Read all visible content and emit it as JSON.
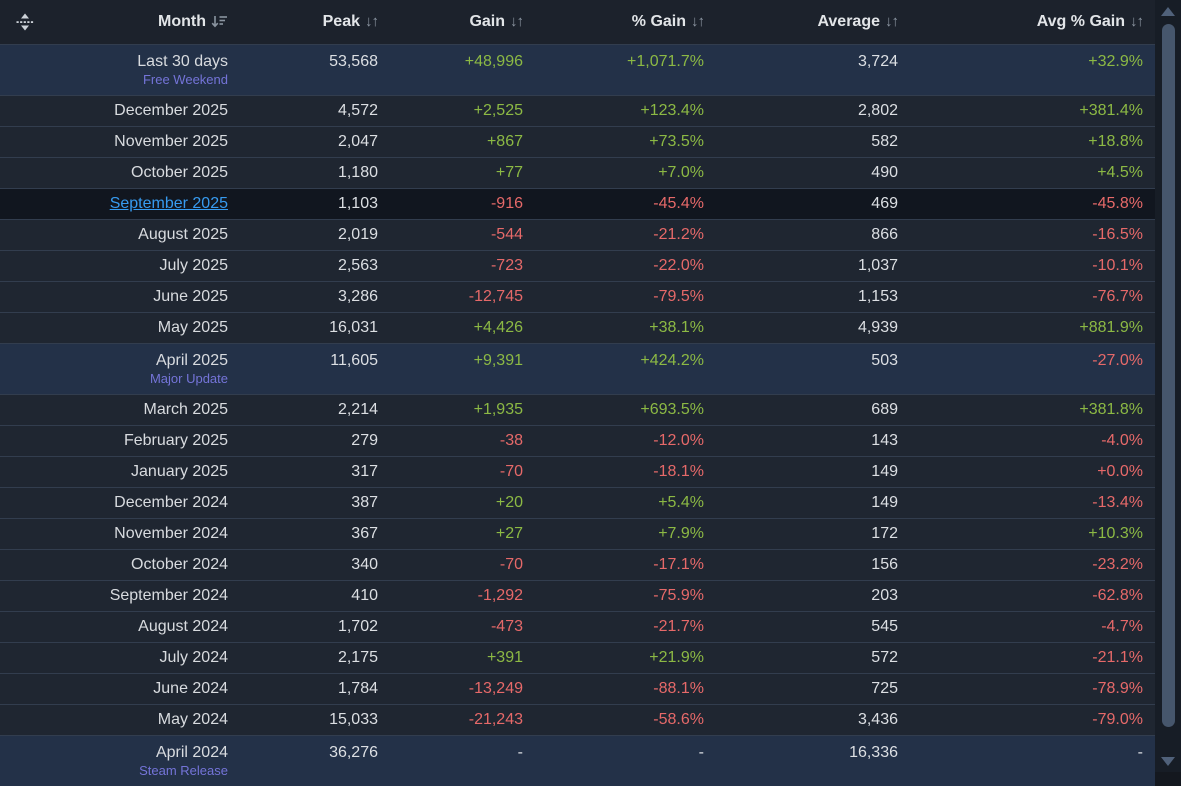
{
  "header": {
    "columns": [
      {
        "label": "Month",
        "sorted": "desc"
      },
      {
        "label": "Peak",
        "sorted": "none"
      },
      {
        "label": "Gain",
        "sorted": "none"
      },
      {
        "label": "% Gain",
        "sorted": "none"
      },
      {
        "label": "Average",
        "sorted": "none"
      },
      {
        "label": "Avg % Gain",
        "sorted": "none"
      }
    ]
  },
  "icons": {
    "sort_both": "↓↑",
    "drag_handle": "move-vertical-icon",
    "sort_desc": "sort-descending-icon"
  },
  "colors": {
    "positive": "#8cb944",
    "negative": "#e66969",
    "link": "#379bf0",
    "event_label": "#7474d8",
    "row_background": "#1f2631",
    "row_highlight": "#233148",
    "row_active": "#11161f",
    "header_background": "#1c222c"
  },
  "rows": [
    {
      "month": "Last 30 days",
      "sub": "Free Weekend",
      "style": "hl",
      "link": false,
      "peak": "53,568",
      "gain": {
        "v": "+48,996",
        "c": "pos"
      },
      "pct": {
        "v": "+1,071.7%",
        "c": "pos"
      },
      "avg": "3,724",
      "avgpct": {
        "v": "+32.9%",
        "c": "pos"
      }
    },
    {
      "month": "December 2025",
      "sub": null,
      "style": "",
      "link": false,
      "peak": "4,572",
      "gain": {
        "v": "+2,525",
        "c": "pos"
      },
      "pct": {
        "v": "+123.4%",
        "c": "pos"
      },
      "avg": "2,802",
      "avgpct": {
        "v": "+381.4%",
        "c": "pos"
      }
    },
    {
      "month": "November 2025",
      "sub": null,
      "style": "",
      "link": false,
      "peak": "2,047",
      "gain": {
        "v": "+867",
        "c": "pos"
      },
      "pct": {
        "v": "+73.5%",
        "c": "pos"
      },
      "avg": "582",
      "avgpct": {
        "v": "+18.8%",
        "c": "pos"
      }
    },
    {
      "month": "October 2025",
      "sub": null,
      "style": "",
      "link": false,
      "peak": "1,180",
      "gain": {
        "v": "+77",
        "c": "pos"
      },
      "pct": {
        "v": "+7.0%",
        "c": "pos"
      },
      "avg": "490",
      "avgpct": {
        "v": "+4.5%",
        "c": "pos"
      }
    },
    {
      "month": "September 2025",
      "sub": null,
      "style": "active",
      "link": true,
      "peak": "1,103",
      "gain": {
        "v": "-916",
        "c": "neg"
      },
      "pct": {
        "v": "-45.4%",
        "c": "neg"
      },
      "avg": "469",
      "avgpct": {
        "v": "-45.8%",
        "c": "neg"
      }
    },
    {
      "month": "August 2025",
      "sub": null,
      "style": "",
      "link": false,
      "peak": "2,019",
      "gain": {
        "v": "-544",
        "c": "neg"
      },
      "pct": {
        "v": "-21.2%",
        "c": "neg"
      },
      "avg": "866",
      "avgpct": {
        "v": "-16.5%",
        "c": "neg"
      }
    },
    {
      "month": "July 2025",
      "sub": null,
      "style": "",
      "link": false,
      "peak": "2,563",
      "gain": {
        "v": "-723",
        "c": "neg"
      },
      "pct": {
        "v": "-22.0%",
        "c": "neg"
      },
      "avg": "1,037",
      "avgpct": {
        "v": "-10.1%",
        "c": "neg"
      }
    },
    {
      "month": "June 2025",
      "sub": null,
      "style": "",
      "link": false,
      "peak": "3,286",
      "gain": {
        "v": "-12,745",
        "c": "neg"
      },
      "pct": {
        "v": "-79.5%",
        "c": "neg"
      },
      "avg": "1,153",
      "avgpct": {
        "v": "-76.7%",
        "c": "neg"
      }
    },
    {
      "month": "May 2025",
      "sub": null,
      "style": "",
      "link": false,
      "peak": "16,031",
      "gain": {
        "v": "+4,426",
        "c": "pos"
      },
      "pct": {
        "v": "+38.1%",
        "c": "pos"
      },
      "avg": "4,939",
      "avgpct": {
        "v": "+881.9%",
        "c": "pos"
      }
    },
    {
      "month": "April 2025",
      "sub": "Major Update",
      "style": "hl",
      "link": false,
      "peak": "11,605",
      "gain": {
        "v": "+9,391",
        "c": "pos"
      },
      "pct": {
        "v": "+424.2%",
        "c": "pos"
      },
      "avg": "503",
      "avgpct": {
        "v": "-27.0%",
        "c": "neg"
      }
    },
    {
      "month": "March 2025",
      "sub": null,
      "style": "",
      "link": false,
      "peak": "2,214",
      "gain": {
        "v": "+1,935",
        "c": "pos"
      },
      "pct": {
        "v": "+693.5%",
        "c": "pos"
      },
      "avg": "689",
      "avgpct": {
        "v": "+381.8%",
        "c": "pos"
      }
    },
    {
      "month": "February 2025",
      "sub": null,
      "style": "",
      "link": false,
      "peak": "279",
      "gain": {
        "v": "-38",
        "c": "neg"
      },
      "pct": {
        "v": "-12.0%",
        "c": "neg"
      },
      "avg": "143",
      "avgpct": {
        "v": "-4.0%",
        "c": "neg"
      }
    },
    {
      "month": "January 2025",
      "sub": null,
      "style": "",
      "link": false,
      "peak": "317",
      "gain": {
        "v": "-70",
        "c": "neg"
      },
      "pct": {
        "v": "-18.1%",
        "c": "neg"
      },
      "avg": "149",
      "avgpct": {
        "v": "+0.0%",
        "c": "neg"
      }
    },
    {
      "month": "December 2024",
      "sub": null,
      "style": "",
      "link": false,
      "peak": "387",
      "gain": {
        "v": "+20",
        "c": "pos"
      },
      "pct": {
        "v": "+5.4%",
        "c": "pos"
      },
      "avg": "149",
      "avgpct": {
        "v": "-13.4%",
        "c": "neg"
      }
    },
    {
      "month": "November 2024",
      "sub": null,
      "style": "",
      "link": false,
      "peak": "367",
      "gain": {
        "v": "+27",
        "c": "pos"
      },
      "pct": {
        "v": "+7.9%",
        "c": "pos"
      },
      "avg": "172",
      "avgpct": {
        "v": "+10.3%",
        "c": "pos"
      }
    },
    {
      "month": "October 2024",
      "sub": null,
      "style": "",
      "link": false,
      "peak": "340",
      "gain": {
        "v": "-70",
        "c": "neg"
      },
      "pct": {
        "v": "-17.1%",
        "c": "neg"
      },
      "avg": "156",
      "avgpct": {
        "v": "-23.2%",
        "c": "neg"
      }
    },
    {
      "month": "September 2024",
      "sub": null,
      "style": "",
      "link": false,
      "peak": "410",
      "gain": {
        "v": "-1,292",
        "c": "neg"
      },
      "pct": {
        "v": "-75.9%",
        "c": "neg"
      },
      "avg": "203",
      "avgpct": {
        "v": "-62.8%",
        "c": "neg"
      }
    },
    {
      "month": "August 2024",
      "sub": null,
      "style": "",
      "link": false,
      "peak": "1,702",
      "gain": {
        "v": "-473",
        "c": "neg"
      },
      "pct": {
        "v": "-21.7%",
        "c": "neg"
      },
      "avg": "545",
      "avgpct": {
        "v": "-4.7%",
        "c": "neg"
      }
    },
    {
      "month": "July 2024",
      "sub": null,
      "style": "",
      "link": false,
      "peak": "2,175",
      "gain": {
        "v": "+391",
        "c": "pos"
      },
      "pct": {
        "v": "+21.9%",
        "c": "pos"
      },
      "avg": "572",
      "avgpct": {
        "v": "-21.1%",
        "c": "neg"
      }
    },
    {
      "month": "June 2024",
      "sub": null,
      "style": "",
      "link": false,
      "peak": "1,784",
      "gain": {
        "v": "-13,249",
        "c": "neg"
      },
      "pct": {
        "v": "-88.1%",
        "c": "neg"
      },
      "avg": "725",
      "avgpct": {
        "v": "-78.9%",
        "c": "neg"
      }
    },
    {
      "month": "May 2024",
      "sub": null,
      "style": "",
      "link": false,
      "peak": "15,033",
      "gain": {
        "v": "-21,243",
        "c": "neg"
      },
      "pct": {
        "v": "-58.6%",
        "c": "neg"
      },
      "avg": "3,436",
      "avgpct": {
        "v": "-79.0%",
        "c": "neg"
      }
    },
    {
      "month": "April 2024",
      "sub": "Steam Release",
      "style": "hl",
      "link": false,
      "peak": "36,276",
      "gain": {
        "v": "-",
        "c": "mut"
      },
      "pct": {
        "v": "-",
        "c": "mut"
      },
      "avg": "16,336",
      "avgpct": {
        "v": "-",
        "c": "mut"
      }
    }
  ]
}
